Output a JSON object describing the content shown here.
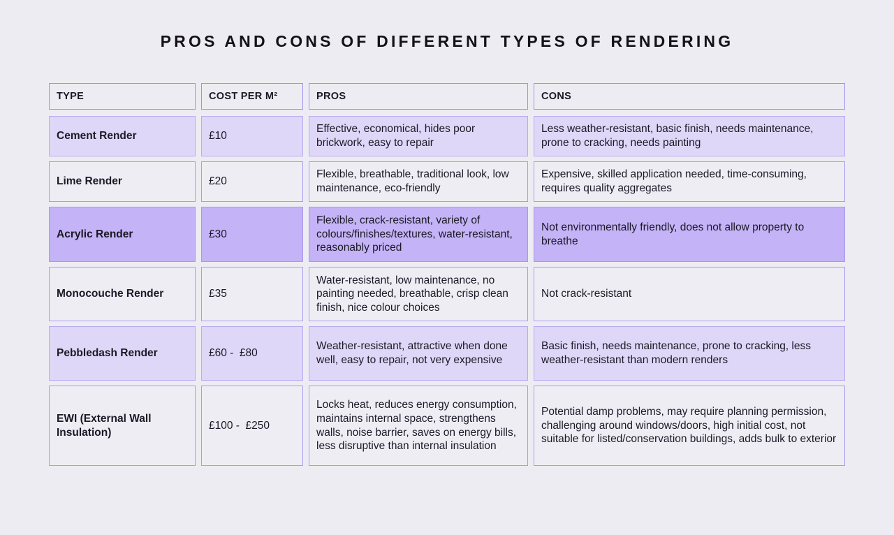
{
  "page": {
    "title": "PROS AND CONS OF DIFFERENT TYPES OF RENDERING"
  },
  "colors": {
    "background": "#edecf3",
    "cell_grey": "#eeedf4",
    "cell_lavender": "#ded7f7",
    "cell_purple": "#c4b3f6",
    "border_purple": "#a48ff0",
    "text": "#1b1926"
  },
  "table": {
    "headers": [
      "TYPE",
      "COST PER M²",
      "PROS",
      "CONS"
    ],
    "rows": [
      {
        "type": "Cement Render",
        "cost": "£10",
        "pros": "Effective, economical, hides poor brickwork, easy to repair",
        "cons": "Less weather-resistant, basic finish, needs maintenance, prone to cracking, needs painting",
        "variant": "lavender"
      },
      {
        "type": "Lime Render",
        "cost": "£20",
        "pros": "Flexible, breathable, traditional look, low maintenance, eco-friendly",
        "cons": "Expensive, skilled application needed, time-consuming, requires quality aggregates",
        "variant": "grey"
      },
      {
        "type": "Acrylic Render",
        "cost": "£30",
        "pros": "Flexible, crack-resistant, variety of colours/finishes/textures, water-resistant, reasonably priced",
        "cons": "Not environmentally friendly, does not allow property to breathe",
        "variant": "purple"
      },
      {
        "type": "Monocouche Render",
        "cost": "£35",
        "pros": "Water-resistant, low maintenance, no painting needed, breathable, crisp clean finish, nice colour choices",
        "cons": "Not crack-resistant",
        "variant": "grey"
      },
      {
        "type": "Pebbledash Render",
        "cost": "£60 -  £80",
        "pros": "Weather-resistant, attractive when done well, easy to repair, not very expensive",
        "cons": "Basic finish, needs maintenance, prone to cracking, less weather-resistant than modern renders",
        "variant": "lavender"
      },
      {
        "type": "EWI (External Wall Insulation)",
        "cost": "£100 -  £250",
        "pros": "Locks heat, reduces energy consumption, maintains internal space, strengthens walls, noise barrier, saves on energy bills, less disruptive than internal insulation",
        "cons": "Potential damp problems, may require planning permission, challenging around windows/doors, high initial cost, not suitable for listed/conservation buildings, adds bulk to exterior",
        "variant": "grey"
      }
    ]
  },
  "chart_data": {
    "type": "table",
    "title": "PROS AND CONS OF DIFFERENT TYPES OF RENDERING",
    "columns": [
      "TYPE",
      "COST PER M²",
      "PROS",
      "CONS"
    ],
    "rows": [
      [
        "Cement Render",
        "£10",
        "Effective, economical, hides poor brickwork, easy to repair",
        "Less weather-resistant, basic finish, needs maintenance, prone to cracking, needs painting"
      ],
      [
        "Lime Render",
        "£20",
        "Flexible, breathable, traditional look, low maintenance, eco-friendly",
        "Expensive, skilled application needed, time-consuming, requires quality aggregates"
      ],
      [
        "Acrylic Render",
        "£30",
        "Flexible, crack-resistant, variety of colours/finishes/textures, water-resistant, reasonably priced",
        "Not environmentally friendly, does not allow property to breathe"
      ],
      [
        "Monocouche Render",
        "£35",
        "Water-resistant, low maintenance, no painting needed, breathable, crisp clean finish, nice colour choices",
        "Not crack-resistant"
      ],
      [
        "Pebbledash Render",
        "£60 -  £80",
        "Weather-resistant, attractive when done well, easy to repair, not very expensive",
        "Basic finish, needs maintenance, prone to cracking, less weather-resistant than modern renders"
      ],
      [
        "EWI (External Wall Insulation)",
        "£100 -  £250",
        "Locks heat, reduces energy consumption, maintains internal space, strengthens walls, noise barrier, saves on energy bills, less disruptive than internal insulation",
        "Potential damp problems, may require planning permission, challenging around windows/doors, high initial cost, not suitable for listed/conservation buildings, adds bulk to exterior"
      ]
    ]
  }
}
